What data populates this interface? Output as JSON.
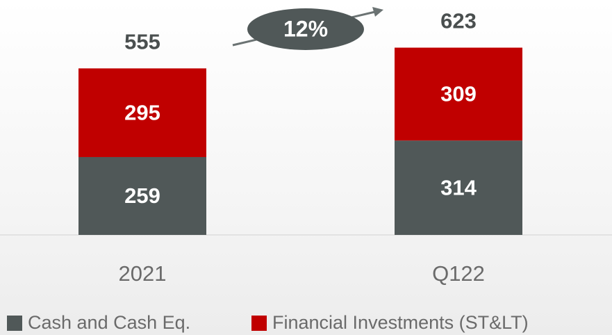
{
  "chart_data": {
    "type": "stacked_bar",
    "categories": [
      "2021",
      "Q122"
    ],
    "series": [
      {
        "name": "Cash and Cash Eq.",
        "color": "#505858",
        "values": [
          259,
          314
        ]
      },
      {
        "name": "Financial Investments (ST&LT)",
        "color": "#c00000",
        "values": [
          295,
          309
        ]
      }
    ],
    "totals": [
      555,
      623
    ],
    "annotation": "12%"
  }
}
